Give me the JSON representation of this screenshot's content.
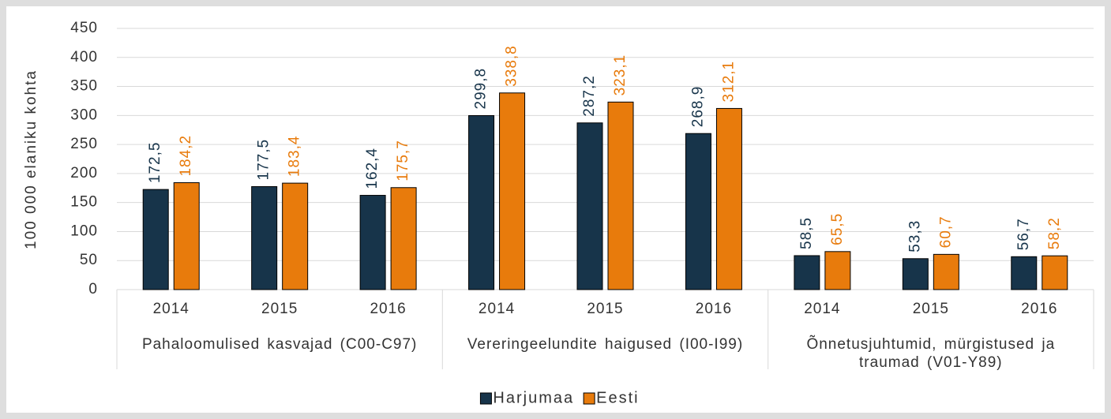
{
  "chart_data": {
    "type": "bar",
    "y_label": "100 000 elaniku kohta",
    "categories": [
      "2014",
      "2015",
      "2016",
      "2014",
      "2015",
      "2016",
      "2014",
      "2015",
      "2016"
    ],
    "groups": [
      "Pahaloomulised kasvajad (C00-C97)",
      "Vereringeelundite haigused (I00-I99)",
      "Õnnetusjuhtumid, mürgistused ja traumad (V01-Y89)"
    ],
    "series": [
      {
        "name": "Harjumaa",
        "color": "#17344a",
        "values": [
          172.5,
          177.5,
          162.4,
          299.8,
          287.2,
          268.9,
          58.5,
          53.3,
          56.7
        ],
        "value_labels": [
          "172,5",
          "177,5",
          "162,4",
          "299,8",
          "287,2",
          "268,9",
          "58,5",
          "53,3",
          "56,7"
        ]
      },
      {
        "name": "Eesti",
        "color": "#e87b0c",
        "values": [
          184.2,
          183.4,
          175.7,
          338.8,
          323.1,
          312.1,
          65.5,
          60.7,
          58.2
        ],
        "value_labels": [
          "184,2",
          "183,4",
          "175,7",
          "338,8",
          "323,1",
          "312,1",
          "65,5",
          "60,7",
          "58,2"
        ]
      }
    ],
    "ylim": [
      0,
      450
    ],
    "yticks": [
      0,
      50,
      100,
      150,
      200,
      250,
      300,
      350,
      400,
      450
    ],
    "grid": true,
    "legend": "bottom"
  }
}
